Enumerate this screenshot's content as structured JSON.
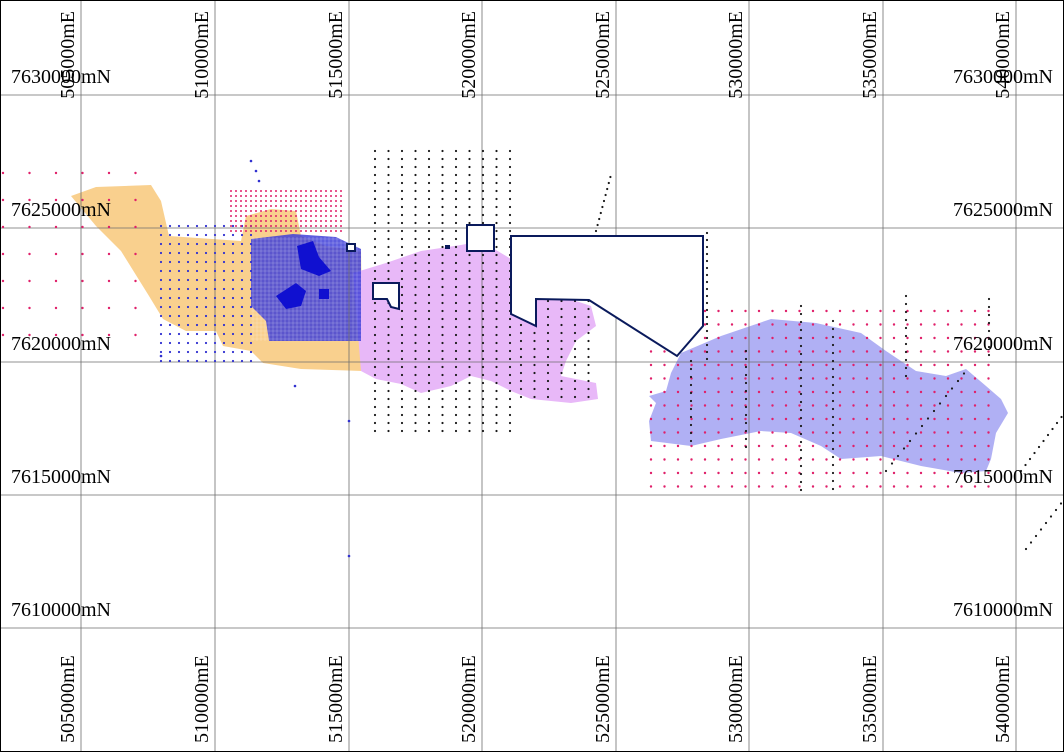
{
  "map": {
    "northing_labels": [
      "7630000mN",
      "7625000mN",
      "7620000mN",
      "7615000mN",
      "7610000mN"
    ],
    "easting_labels": [
      "505000mE",
      "510000mE",
      "515000mE",
      "520000mE",
      "525000mE",
      "530000mE",
      "535000mE",
      "540000mE"
    ],
    "colors": {
      "grid": "#6e6e6e",
      "orange_zone": "#f9d08e",
      "violet_zone": "#e8b8f8",
      "blue_zone": "#b0b0f4",
      "dense_block": "#4040d8",
      "outline": "#0a1a5c",
      "dot_black": "#1a1a1a",
      "dot_red": "#e0206a",
      "dot_blue": "#3030d0"
    }
  }
}
